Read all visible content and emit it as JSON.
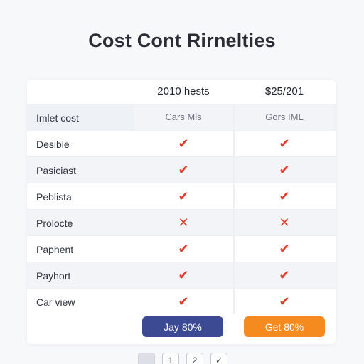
{
  "title": "Cost Cont Rirnelties",
  "columns": [
    "2010 hests",
    "$25/201"
  ],
  "table_header": {
    "label": "Imlet cost",
    "col1": "Cars Mls",
    "col2": "Gors IML"
  },
  "rows": [
    {
      "label": "Desible",
      "col1": "✔",
      "col2": "✔"
    },
    {
      "label": "Pasiciast",
      "col1": "✔",
      "col2": "✔"
    },
    {
      "label": "Peblista",
      "col1": "✔",
      "col2": "✔"
    },
    {
      "label": "Prolocte",
      "col1": "✕",
      "col2": "✕"
    },
    {
      "label": "Paphent",
      "col1": "✔",
      "col2": "✔"
    },
    {
      "label": "Payhort",
      "col1": "✔",
      "col2": "✔"
    },
    {
      "label": "Car view",
      "col1": "✔",
      "col2": "✔"
    }
  ],
  "buttons": {
    "blue": "Jay 80%",
    "orange": "Get 80%"
  },
  "pager": [
    "",
    "1",
    "2",
    "✓"
  ],
  "colors": {
    "check": "#e23c2a",
    "blue_button": "#3b4a93",
    "orange_button": "#f58a1f"
  }
}
